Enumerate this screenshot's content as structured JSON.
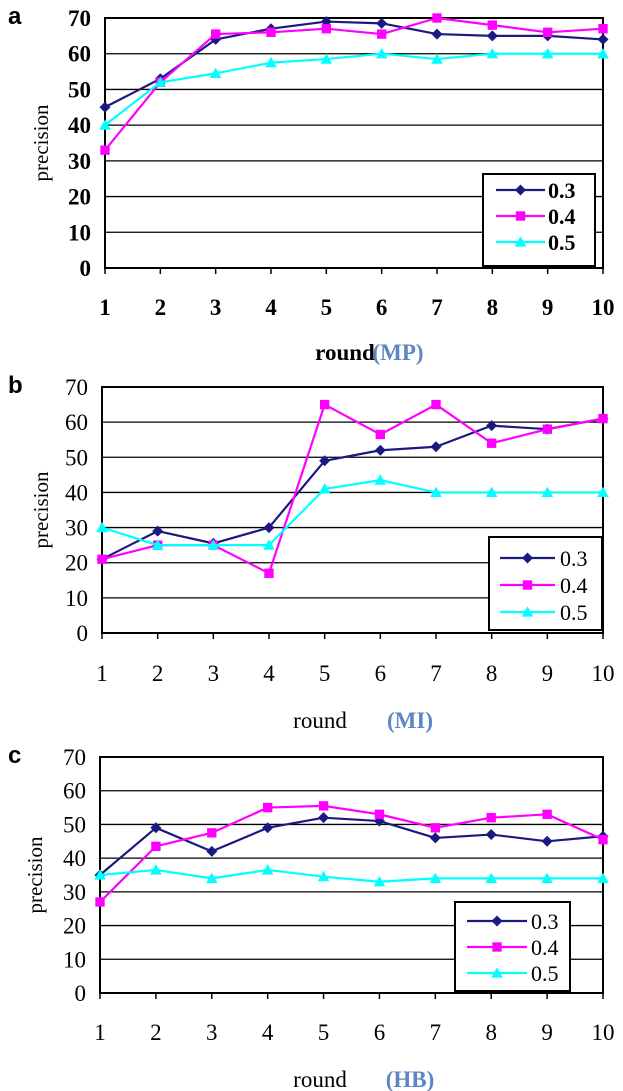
{
  "chart_data": [
    {
      "panel": "a",
      "type": "line",
      "ylabel": "precision",
      "xlabel": "round",
      "dataset": "(MP)",
      "ylim": [
        0,
        70
      ],
      "yticks": [
        0,
        10,
        20,
        30,
        40,
        50,
        60,
        70
      ],
      "x": [
        1,
        2,
        3,
        4,
        5,
        6,
        7,
        8,
        9,
        10
      ],
      "grid": true,
      "legend": "bottom-right",
      "series": [
        {
          "name": "0.3",
          "color": "#1a1a80",
          "marker": "diamond",
          "values": [
            45,
            53,
            64,
            67,
            69,
            68.5,
            65.5,
            65,
            65,
            64
          ]
        },
        {
          "name": "0.4",
          "color": "#ff00ff",
          "marker": "square",
          "values": [
            33,
            52,
            65.5,
            66,
            67,
            65.5,
            70,
            68,
            66,
            67
          ]
        },
        {
          "name": "0.5",
          "color": "#00ffff",
          "marker": "triangle",
          "values": [
            40,
            52,
            54.5,
            57.5,
            58.5,
            60,
            58.5,
            60,
            60,
            60
          ]
        }
      ]
    },
    {
      "panel": "b",
      "type": "line",
      "ylabel": "precision",
      "xlabel": "round",
      "dataset": "(MI)",
      "ylim": [
        0,
        70
      ],
      "yticks": [
        0,
        10,
        20,
        30,
        40,
        50,
        60,
        70
      ],
      "x": [
        1,
        2,
        3,
        4,
        5,
        6,
        7,
        8,
        9,
        10
      ],
      "grid": true,
      "legend": "bottom-right",
      "series": [
        {
          "name": "0.3",
          "color": "#1a1a80",
          "marker": "diamond",
          "values": [
            21,
            29,
            25.5,
            30,
            49,
            52,
            53,
            59,
            58,
            61
          ]
        },
        {
          "name": "0.4",
          "color": "#ff00ff",
          "marker": "square",
          "values": [
            21,
            25,
            25,
            17,
            65,
            56.5,
            65,
            54,
            58,
            61
          ]
        },
        {
          "name": "0.5",
          "color": "#00ffff",
          "marker": "triangle",
          "values": [
            30,
            25,
            25,
            25,
            41,
            43.5,
            40,
            40,
            40,
            40
          ]
        }
      ]
    },
    {
      "panel": "c",
      "type": "line",
      "ylabel": "precision",
      "xlabel": "round",
      "dataset": "(HB)",
      "ylim": [
        0,
        70
      ],
      "yticks": [
        0,
        10,
        20,
        30,
        40,
        50,
        60,
        70
      ],
      "x": [
        1,
        2,
        3,
        4,
        5,
        6,
        7,
        8,
        9,
        10
      ],
      "grid": true,
      "legend": "bottom-right",
      "series": [
        {
          "name": "0.3",
          "color": "#1a1a80",
          "marker": "diamond",
          "values": [
            35,
            49,
            42,
            49,
            52,
            51,
            46,
            47,
            45,
            46.5
          ]
        },
        {
          "name": "0.4",
          "color": "#ff00ff",
          "marker": "square",
          "values": [
            27,
            43.5,
            47.5,
            55,
            55.5,
            53,
            49,
            52,
            53,
            45.5
          ]
        },
        {
          "name": "0.5",
          "color": "#00ffff",
          "marker": "triangle",
          "values": [
            35,
            36.5,
            34,
            36.5,
            34.5,
            33,
            34,
            34,
            34,
            34
          ]
        }
      ]
    }
  ]
}
